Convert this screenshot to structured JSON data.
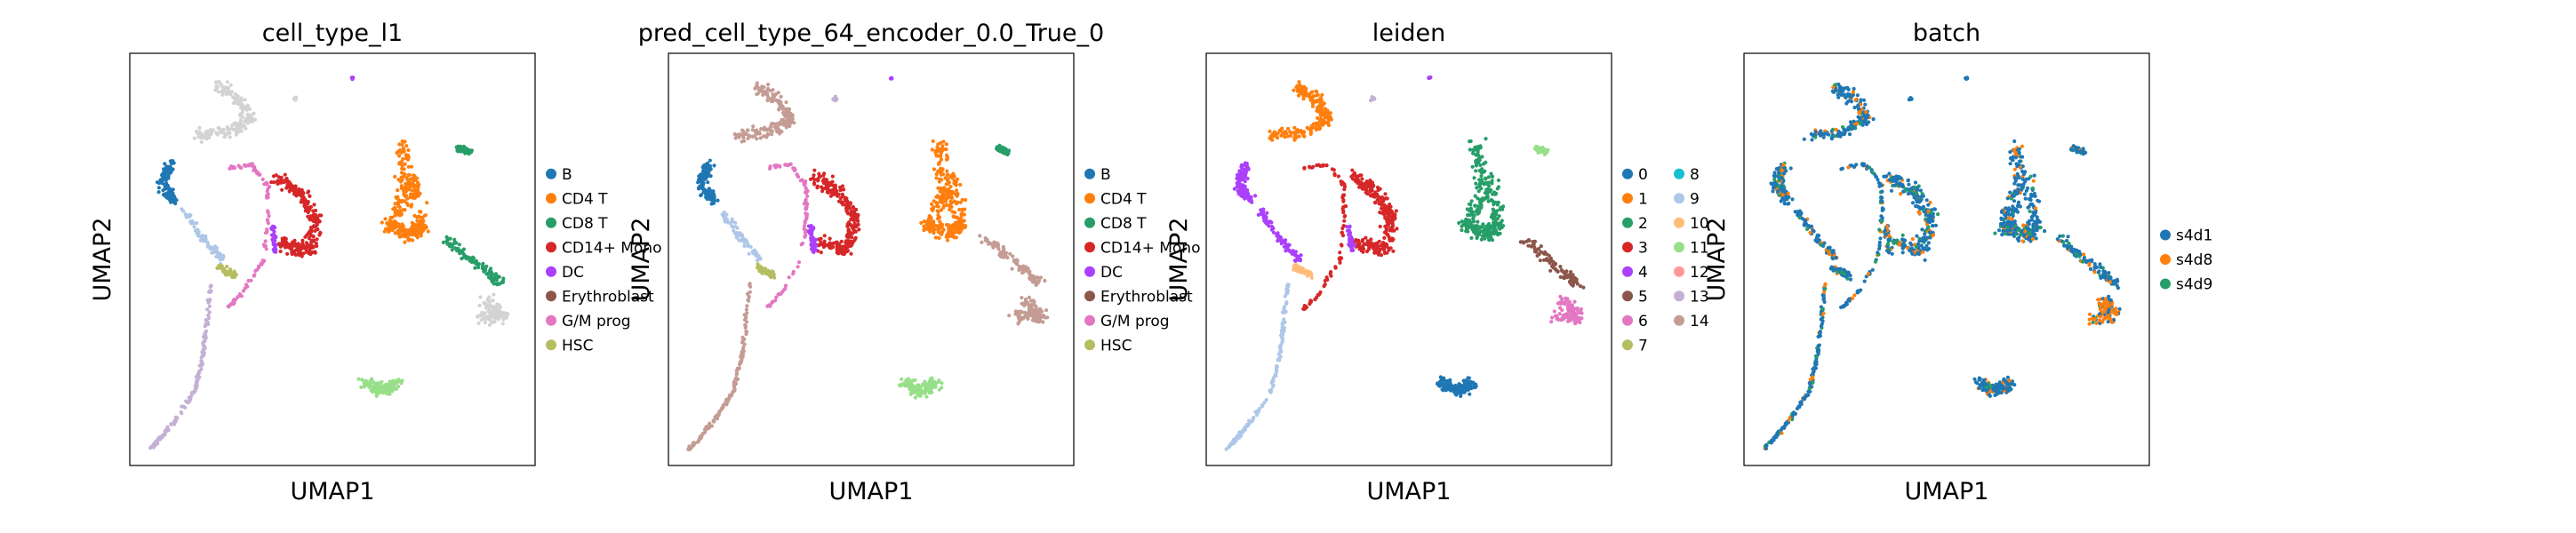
{
  "chart_data": [
    {
      "type": "scatter",
      "title": "cell_type_l1",
      "xlabel": "UMAP1",
      "ylabel": "UMAP2",
      "legend_placement": "right",
      "legend": [
        {
          "label": "B",
          "color": "#1f77b4"
        },
        {
          "label": "CD4 T",
          "color": "#ff7f0e"
        },
        {
          "label": "CD8 T",
          "color": "#279e68"
        },
        {
          "label": "CD14+ Mono",
          "color": "#d62728"
        },
        {
          "label": "DC",
          "color": "#aa40fc"
        },
        {
          "label": "Erythroblast",
          "color": "#8c564b"
        },
        {
          "label": "G/M prog",
          "color": "#e377c2"
        },
        {
          "label": "HSC",
          "color": "#b5bd61"
        }
      ]
    },
    {
      "type": "scatter",
      "title": "pred_cell_type_64_encoder_0.0_True_0",
      "xlabel": "UMAP1",
      "ylabel": "UMAP2",
      "legend_placement": "right",
      "legend": [
        {
          "label": "B",
          "color": "#1f77b4"
        },
        {
          "label": "CD4 T",
          "color": "#ff7f0e"
        },
        {
          "label": "CD8 T",
          "color": "#279e68"
        },
        {
          "label": "CD14+ Mono",
          "color": "#d62728"
        },
        {
          "label": "DC",
          "color": "#aa40fc"
        },
        {
          "label": "Erythroblast",
          "color": "#8c564b"
        },
        {
          "label": "G/M prog",
          "color": "#e377c2"
        },
        {
          "label": "HSC",
          "color": "#b5bd61"
        }
      ]
    },
    {
      "type": "scatter",
      "title": "leiden",
      "xlabel": "UMAP1",
      "ylabel": "UMAP2",
      "legend_placement": "right",
      "legend": [
        {
          "label": "0",
          "color": "#1f77b4"
        },
        {
          "label": "1",
          "color": "#ff7f0e"
        },
        {
          "label": "2",
          "color": "#279e68"
        },
        {
          "label": "3",
          "color": "#d62728"
        },
        {
          "label": "4",
          "color": "#aa40fc"
        },
        {
          "label": "5",
          "color": "#8c564b"
        },
        {
          "label": "6",
          "color": "#e377c2"
        },
        {
          "label": "7",
          "color": "#b5bd61"
        },
        {
          "label": "8",
          "color": "#17becf"
        },
        {
          "label": "9",
          "color": "#aec7e8"
        },
        {
          "label": "10",
          "color": "#ffbb78"
        },
        {
          "label": "11",
          "color": "#98df8a"
        },
        {
          "label": "12",
          "color": "#ff9896"
        },
        {
          "label": "13",
          "color": "#c5b0d5"
        },
        {
          "label": "14",
          "color": "#c49c94"
        }
      ]
    },
    {
      "type": "scatter",
      "title": "batch",
      "xlabel": "UMAP1",
      "ylabel": "UMAP2",
      "legend_placement": "right",
      "legend": [
        {
          "label": "s4d1",
          "color": "#1f77b4"
        },
        {
          "label": "s4d8",
          "color": "#ff7f0e"
        },
        {
          "label": "s4d9",
          "color": "#279e68"
        }
      ]
    }
  ]
}
